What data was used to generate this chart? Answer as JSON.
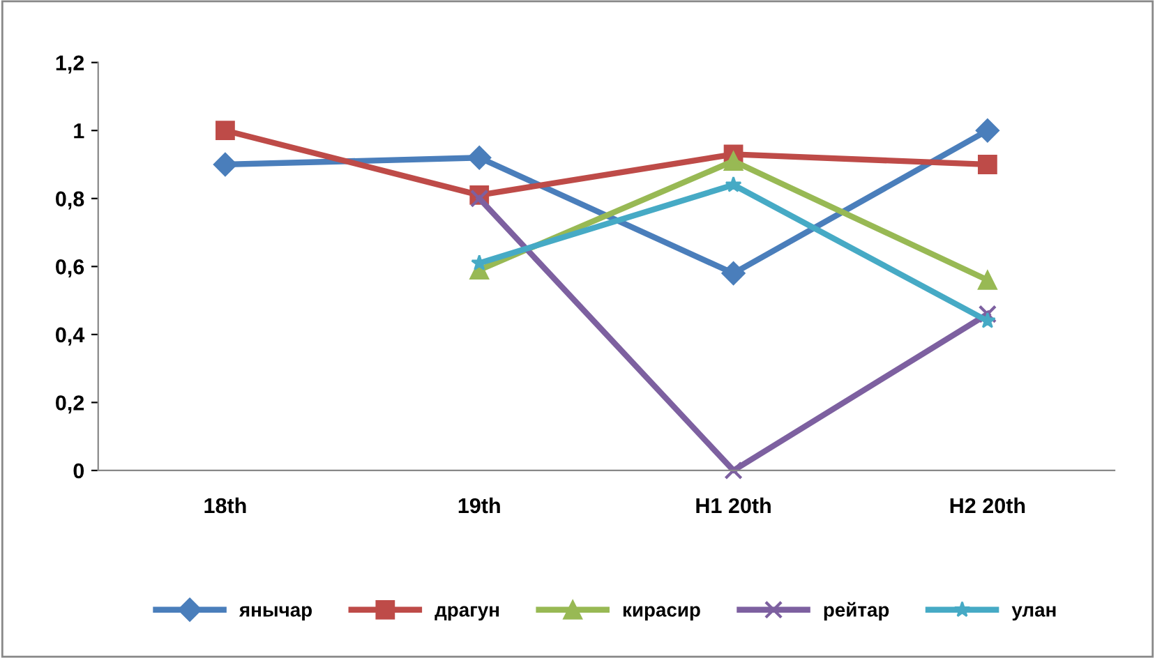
{
  "chart_data": {
    "type": "line",
    "categories": [
      "18th",
      "19th",
      "H1 20th",
      "H2 20th"
    ],
    "series": [
      {
        "name": "янычар",
        "color": "#4a7ebb",
        "marker": "diamond",
        "values": [
          0.9,
          0.92,
          0.58,
          1.0
        ]
      },
      {
        "name": "драгун",
        "color": "#be4b48",
        "marker": "square",
        "values": [
          1.0,
          0.81,
          0.93,
          0.9
        ]
      },
      {
        "name": "кирасир",
        "color": "#98b954",
        "marker": "triangle",
        "values": [
          null,
          0.59,
          0.91,
          0.56
        ]
      },
      {
        "name": "рейтар",
        "color": "#7d60a0",
        "marker": "cross",
        "values": [
          null,
          0.8,
          0.0,
          0.46
        ]
      },
      {
        "name": "улан",
        "color": "#46aac5",
        "marker": "star",
        "values": [
          null,
          0.61,
          0.84,
          0.44
        ]
      }
    ],
    "ylim": [
      0,
      1.2
    ],
    "yticks": [
      {
        "value": 0,
        "label": "0"
      },
      {
        "value": 0.2,
        "label": "0,2"
      },
      {
        "value": 0.4,
        "label": "0,4"
      },
      {
        "value": 0.6,
        "label": "0,6"
      },
      {
        "value": 0.8,
        "label": "0,8"
      },
      {
        "value": 1,
        "label": "1"
      },
      {
        "value": 1.2,
        "label": "1,2"
      }
    ],
    "grid": false,
    "legend": "bottom"
  }
}
